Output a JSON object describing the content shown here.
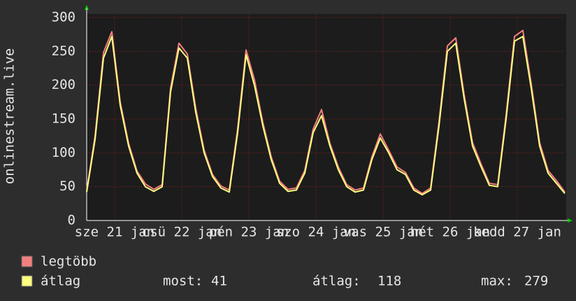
{
  "chart_data": {
    "type": "line",
    "ylabel": "onlinestream.live",
    "x": [
      0,
      3,
      6,
      9,
      12,
      15,
      18,
      21,
      24,
      27,
      30,
      33,
      36,
      39,
      42,
      45,
      48,
      51,
      54,
      57,
      60,
      63,
      66,
      69,
      72,
      75,
      78,
      81,
      84,
      87,
      90,
      93,
      96,
      99,
      102,
      105,
      108,
      111,
      114,
      117,
      120,
      123,
      126,
      129,
      132,
      135,
      138,
      141,
      144,
      147,
      150,
      153,
      156,
      159,
      162,
      165,
      168,
      171
    ],
    "xlim": [
      0,
      171
    ],
    "xticks": [
      {
        "value": 10,
        "label": "sze 21 jan"
      },
      {
        "value": 34,
        "label": "csü 22 jan"
      },
      {
        "value": 58,
        "label": "pén 23 jan"
      },
      {
        "value": 82,
        "label": "szo 24 jan"
      },
      {
        "value": 106,
        "label": "vas 25 jan"
      },
      {
        "value": 130,
        "label": "hét 26 jan"
      },
      {
        "value": 154,
        "label": "kedd 27 jan"
      }
    ],
    "ylim": [
      0,
      300
    ],
    "yticks": [
      0,
      50,
      100,
      150,
      200,
      250,
      300
    ],
    "grid": true,
    "series": [
      {
        "name": "legtöbb",
        "color": "#f47f7f",
        "values": [
          44,
          125,
          248,
          279,
          175,
          114,
          73,
          54,
          46,
          53,
          196,
          262,
          246,
          166,
          104,
          68,
          51,
          45,
          136,
          252,
          208,
          145,
          94,
          58,
          46,
          48,
          74,
          135,
          164,
          114,
          79,
          53,
          45,
          48,
          94,
          128,
          104,
          79,
          71,
          48,
          40,
          48,
          146,
          258,
          270,
          186,
          115,
          84,
          55,
          53,
          156,
          272,
          281,
          202,
          115,
          74,
          59,
          42
        ]
      },
      {
        "name": "átlag",
        "color": "#ffff80",
        "values": [
          42,
          120,
          240,
          272,
          170,
          110,
          70,
          50,
          43,
          50,
          190,
          255,
          240,
          160,
          100,
          65,
          48,
          42,
          130,
          245,
          200,
          140,
          90,
          55,
          43,
          45,
          70,
          130,
          155,
          110,
          75,
          50,
          42,
          45,
          90,
          122,
          100,
          75,
          68,
          45,
          38,
          45,
          140,
          250,
          262,
          180,
          110,
          80,
          52,
          50,
          150,
          265,
          272,
          195,
          110,
          70,
          55,
          40
        ]
      }
    ],
    "stats": [
      {
        "label": "most:",
        "value": 41
      },
      {
        "label": "átlag:",
        "value": 118
      },
      {
        "label": "max:",
        "value": 279
      }
    ]
  }
}
